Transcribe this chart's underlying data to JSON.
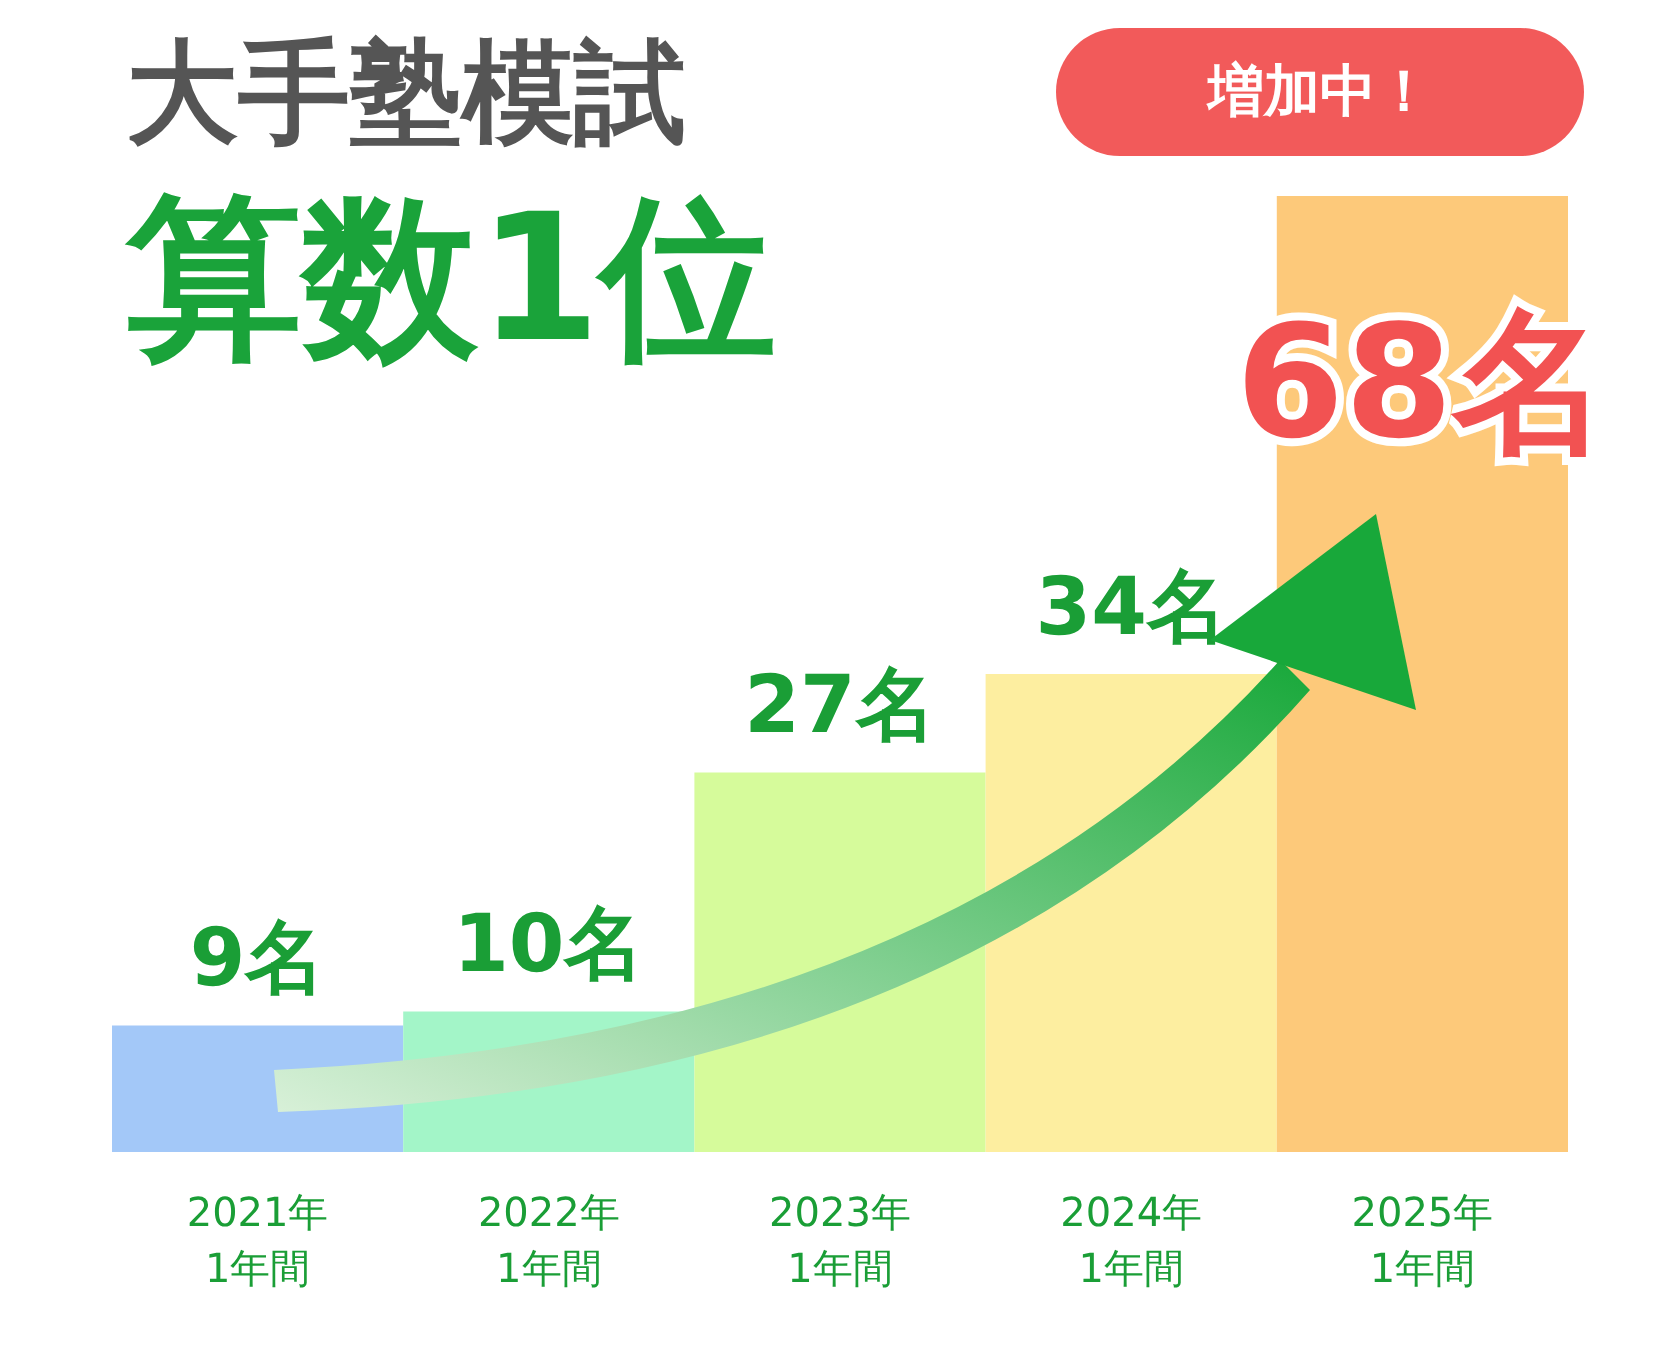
{
  "chart_data": {
    "type": "bar",
    "title": "大手塾模試",
    "subtitle": "算数1位",
    "categories": [
      "2021年\n1年間",
      "2022年\n1年間",
      "2023年\n1年間",
      "2024年\n1年間",
      "2025年\n1年間"
    ],
    "values": [
      9,
      10,
      27,
      34,
      68
    ],
    "colors": [
      "#a3c8f8",
      "#a3f5c8",
      "#d6fb9b",
      "#fdeea0",
      "#fdc97a"
    ],
    "value_labels": [
      "9名",
      "10名",
      "27名",
      "34名",
      "68名"
    ],
    "annotations": [
      "増加中！"
    ]
  }
}
